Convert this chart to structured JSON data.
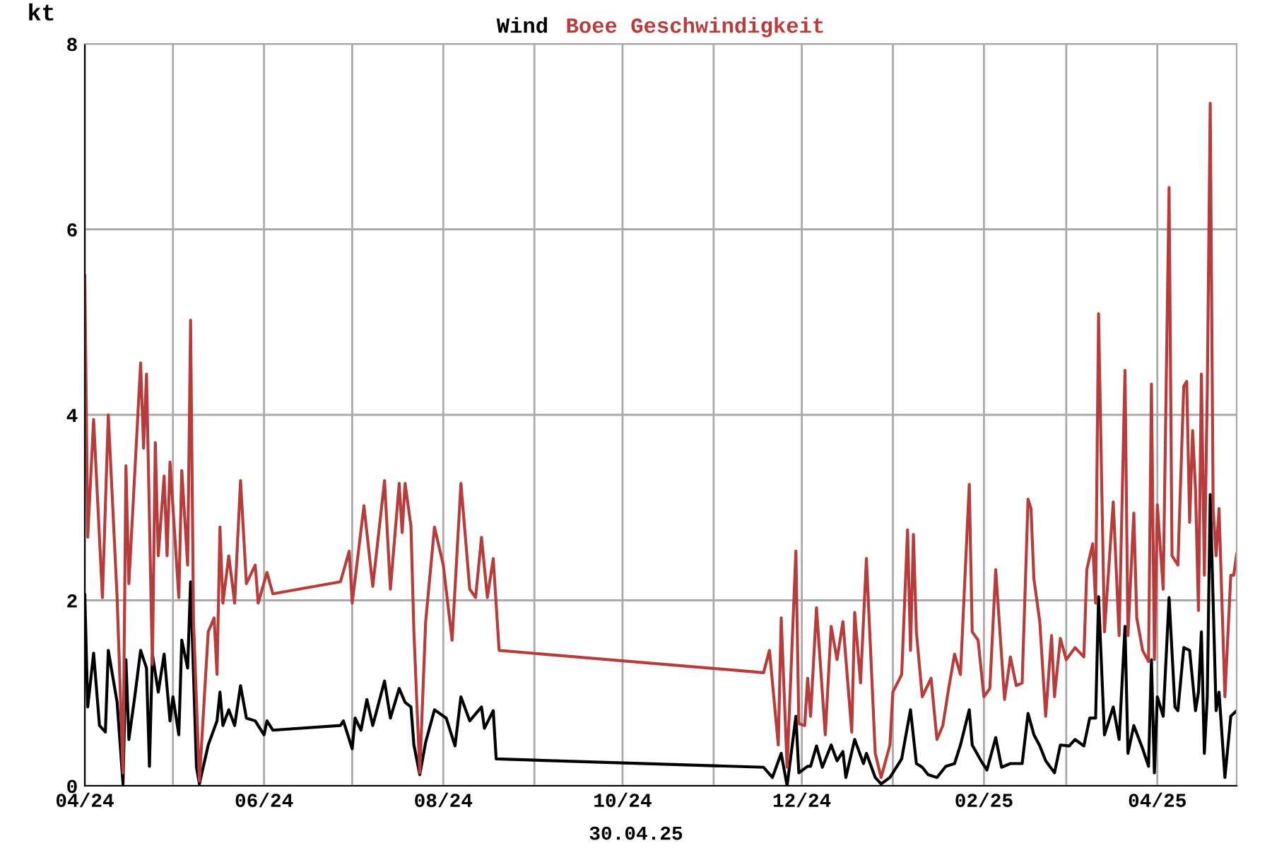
{
  "chart_data": {
    "type": "line",
    "ylabel": "kt",
    "legend": "top",
    "grid": true,
    "marker": "none",
    "line_style": "solid",
    "xlim": [
      "2024-04-01",
      "2025-04-28"
    ],
    "xticks": [
      {
        "value": "2024-04-01",
        "label": "04/24"
      },
      {
        "value": "2024-05-01",
        "label": null
      },
      {
        "value": "2024-06-01",
        "label": "06/24"
      },
      {
        "value": "2024-07-01",
        "label": null
      },
      {
        "value": "2024-08-01",
        "label": "08/24"
      },
      {
        "value": "2024-09-01",
        "label": null
      },
      {
        "value": "2024-10-01",
        "label": "10/24"
      },
      {
        "value": "2024-11-01",
        "label": null
      },
      {
        "value": "2024-12-01",
        "label": "12/24"
      },
      {
        "value": "2025-01-01",
        "label": null
      },
      {
        "value": "2025-02-01",
        "label": "02/25"
      },
      {
        "value": "2025-03-01",
        "label": null
      },
      {
        "value": "2025-04-01",
        "label": "04/25"
      }
    ],
    "ylim": [
      0,
      8
    ],
    "yticks": [
      0,
      2,
      4,
      6,
      8
    ],
    "annotations": [
      "30.04.25"
    ],
    "series": [
      {
        "name": "Wind",
        "color": "#000000",
        "x": [
          "2024-04-01",
          "2024-04-02",
          "2024-04-04",
          "2024-04-06",
          "2024-04-08",
          "2024-04-09",
          "2024-04-12",
          "2024-04-14",
          "2024-04-15",
          "2024-04-16",
          "2024-04-18",
          "2024-04-20",
          "2024-04-22",
          "2024-04-23",
          "2024-04-24",
          "2024-04-26",
          "2024-04-28",
          "2024-04-30",
          "2024-05-01",
          "2024-05-03",
          "2024-05-04",
          "2024-05-06",
          "2024-05-07",
          "2024-05-09",
          "2024-05-10",
          "2024-05-13",
          "2024-05-16",
          "2024-05-17",
          "2024-05-18",
          "2024-05-20",
          "2024-05-22",
          "2024-05-24",
          "2024-05-26",
          "2024-05-29",
          "2024-06-01",
          "2024-06-02",
          "2024-06-04",
          "2024-06-27",
          "2024-06-28",
          "2024-07-01",
          "2024-07-02",
          "2024-07-04",
          "2024-07-06",
          "2024-07-08",
          "2024-07-12",
          "2024-07-14",
          "2024-07-17",
          "2024-07-19",
          "2024-07-21",
          "2024-07-22",
          "2024-07-24",
          "2024-07-26",
          "2024-07-29",
          "2024-08-02",
          "2024-08-05",
          "2024-08-07",
          "2024-08-10",
          "2024-08-14",
          "2024-08-15",
          "2024-08-18",
          "2024-08-19",
          "2024-11-18",
          "2024-11-21",
          "2024-11-24",
          "2024-11-26",
          "2024-11-29",
          "2024-11-30",
          "2024-12-03",
          "2024-12-04",
          "2024-12-06",
          "2024-12-08",
          "2024-12-11",
          "2024-12-13",
          "2024-12-15",
          "2024-12-16",
          "2024-12-19",
          "2024-12-22",
          "2024-12-23",
          "2024-12-26",
          "2024-12-28",
          "2024-12-31",
          "2025-01-04",
          "2025-01-05",
          "2025-01-07",
          "2025-01-09",
          "2025-01-11",
          "2025-01-13",
          "2025-01-16",
          "2025-01-19",
          "2025-01-22",
          "2025-01-24",
          "2025-01-27",
          "2025-01-28",
          "2025-01-31",
          "2025-02-02",
          "2025-02-05",
          "2025-02-07",
          "2025-02-10",
          "2025-02-14",
          "2025-02-16",
          "2025-02-18",
          "2025-02-20",
          "2025-02-22",
          "2025-02-25",
          "2025-02-27",
          "2025-03-02",
          "2025-03-04",
          "2025-03-07",
          "2025-03-09",
          "2025-03-11",
          "2025-03-12",
          "2025-03-14",
          "2025-03-17",
          "2025-03-19",
          "2025-03-21",
          "2025-03-22",
          "2025-03-24",
          "2025-03-27",
          "2025-03-29",
          "2025-03-30",
          "2025-03-31",
          "2025-04-01",
          "2025-04-03",
          "2025-04-05",
          "2025-04-07",
          "2025-04-08",
          "2025-04-10",
          "2025-04-12",
          "2025-04-14",
          "2025-04-15",
          "2025-04-16",
          "2025-04-17",
          "2025-04-18",
          "2025-04-19",
          "2025-04-21",
          "2025-04-22",
          "2025-04-24",
          "2025-04-26",
          "2025-04-28"
        ],
        "values": [
          2.06,
          0.85,
          1.43,
          0.65,
          0.58,
          1.46,
          0.9,
          0.02,
          1.36,
          0.5,
          0.96,
          1.46,
          1.27,
          0.21,
          1.42,
          1.01,
          1.42,
          0.7,
          0.96,
          0.55,
          1.57,
          1.27,
          2.2,
          0.2,
          0.02,
          0.44,
          0.7,
          1.01,
          0.65,
          0.82,
          0.65,
          1.08,
          0.73,
          0.7,
          0.55,
          0.7,
          0.6,
          0.65,
          0.7,
          0.4,
          0.73,
          0.6,
          0.93,
          0.65,
          1.13,
          0.73,
          1.05,
          0.9,
          0.85,
          0.44,
          0.12,
          0.47,
          0.82,
          0.73,
          0.43,
          0.96,
          0.7,
          0.85,
          0.62,
          0.81,
          0.29,
          0.2,
          0.09,
          0.35,
          0.0,
          0.75,
          0.14,
          0.21,
          0.21,
          0.43,
          0.2,
          0.44,
          0.27,
          0.37,
          0.09,
          0.5,
          0.24,
          0.35,
          0.09,
          0.02,
          0.09,
          0.29,
          0.47,
          0.82,
          0.24,
          0.2,
          0.12,
          0.09,
          0.21,
          0.24,
          0.44,
          0.82,
          0.44,
          0.27,
          0.17,
          0.52,
          0.2,
          0.24,
          0.24,
          0.78,
          0.55,
          0.43,
          0.27,
          0.14,
          0.44,
          0.43,
          0.5,
          0.43,
          0.73,
          0.73,
          2.04,
          0.55,
          0.85,
          0.5,
          1.72,
          0.35,
          0.65,
          0.4,
          0.21,
          1.36,
          0.14,
          0.96,
          0.75,
          2.03,
          0.85,
          0.81,
          1.49,
          1.46,
          0.81,
          1.01,
          1.66,
          0.35,
          0.96,
          3.14,
          0.81,
          1.01,
          0.09,
          0.75,
          0.81
        ]
      },
      {
        "name": "Boee Geschwindigkeit",
        "color": "#b83c3c",
        "x": [
          "2024-04-01",
          "2024-04-02",
          "2024-04-04",
          "2024-04-07",
          "2024-04-09",
          "2024-04-12",
          "2024-04-14",
          "2024-04-15",
          "2024-04-16",
          "2024-04-20",
          "2024-04-21",
          "2024-04-22",
          "2024-04-24",
          "2024-04-25",
          "2024-04-26",
          "2024-04-28",
          "2024-04-29",
          "2024-04-30",
          "2024-05-03",
          "2024-05-04",
          "2024-05-06",
          "2024-05-07",
          "2024-05-08",
          "2024-05-10",
          "2024-05-13",
          "2024-05-15",
          "2024-05-16",
          "2024-05-17",
          "2024-05-18",
          "2024-05-20",
          "2024-05-22",
          "2024-05-23",
          "2024-05-24",
          "2024-05-26",
          "2024-05-29",
          "2024-05-30",
          "2024-06-02",
          "2024-06-04",
          "2024-06-27",
          "2024-06-30",
          "2024-07-01",
          "2024-07-05",
          "2024-07-08",
          "2024-07-12",
          "2024-07-14",
          "2024-07-17",
          "2024-07-18",
          "2024-07-19",
          "2024-07-21",
          "2024-07-22",
          "2024-07-24",
          "2024-07-26",
          "2024-07-29",
          "2024-08-01",
          "2024-08-04",
          "2024-08-07",
          "2024-08-10",
          "2024-08-12",
          "2024-08-14",
          "2024-08-16",
          "2024-08-18",
          "2024-08-20",
          "2024-11-18",
          "2024-11-20",
          "2024-11-23",
          "2024-11-24",
          "2024-11-26",
          "2024-11-29",
          "2024-11-30",
          "2024-12-02",
          "2024-12-03",
          "2024-12-04",
          "2024-12-06",
          "2024-12-09",
          "2024-12-11",
          "2024-12-13",
          "2024-12-15",
          "2024-12-18",
          "2024-12-19",
          "2024-12-21",
          "2024-12-23",
          "2024-12-26",
          "2024-12-28",
          "2024-12-31",
          "2025-01-01",
          "2025-01-04",
          "2025-01-06",
          "2025-01-07",
          "2025-01-08",
          "2025-01-09",
          "2025-01-11",
          "2025-01-14",
          "2025-01-16",
          "2025-01-18",
          "2025-01-20",
          "2025-01-22",
          "2025-01-24",
          "2025-01-27",
          "2025-01-28",
          "2025-01-30",
          "2025-02-01",
          "2025-02-03",
          "2025-02-05",
          "2025-02-08",
          "2025-02-10",
          "2025-02-12",
          "2025-02-14",
          "2025-02-16",
          "2025-02-17",
          "2025-02-18",
          "2025-02-20",
          "2025-02-22",
          "2025-02-24",
          "2025-02-25",
          "2025-02-27",
          "2025-03-01",
          "2025-03-04",
          "2025-03-07",
          "2025-03-08",
          "2025-03-10",
          "2025-03-11",
          "2025-03-12",
          "2025-03-14",
          "2025-03-17",
          "2025-03-19",
          "2025-03-21",
          "2025-03-22",
          "2025-03-24",
          "2025-03-25",
          "2025-03-27",
          "2025-03-29",
          "2025-03-30",
          "2025-03-31",
          "2025-04-01",
          "2025-04-03",
          "2025-04-05",
          "2025-04-06",
          "2025-04-08",
          "2025-04-10",
          "2025-04-11",
          "2025-04-12",
          "2025-04-13",
          "2025-04-14",
          "2025-04-15",
          "2025-04-16",
          "2025-04-17",
          "2025-04-18",
          "2025-04-19",
          "2025-04-20",
          "2025-04-21",
          "2025-04-22",
          "2025-04-24",
          "2025-04-26",
          "2025-04-27",
          "2025-04-28"
        ],
        "values": [
          5.5,
          2.68,
          3.95,
          2.03,
          4.0,
          2.03,
          0.14,
          3.45,
          2.18,
          4.56,
          3.64,
          4.44,
          1.31,
          3.7,
          2.48,
          3.34,
          2.48,
          3.49,
          2.03,
          3.4,
          2.38,
          5.02,
          1.77,
          0.05,
          1.66,
          1.81,
          1.2,
          2.79,
          1.97,
          2.48,
          1.97,
          2.64,
          3.29,
          2.18,
          2.38,
          1.97,
          2.3,
          2.07,
          2.2,
          2.53,
          1.97,
          3.02,
          2.15,
          3.29,
          2.12,
          3.26,
          2.73,
          3.26,
          2.8,
          1.66,
          0.14,
          1.77,
          2.79,
          2.38,
          1.57,
          3.26,
          2.12,
          2.03,
          2.68,
          2.03,
          2.45,
          1.46,
          1.22,
          1.46,
          0.44,
          1.81,
          0.2,
          2.53,
          0.67,
          0.65,
          1.16,
          0.75,
          1.92,
          0.55,
          1.72,
          1.36,
          1.77,
          0.58,
          1.87,
          1.11,
          2.45,
          0.35,
          0.09,
          0.44,
          1.01,
          1.2,
          2.76,
          1.46,
          2.71,
          1.66,
          0.96,
          1.16,
          0.5,
          0.65,
          1.05,
          1.42,
          1.2,
          3.25,
          1.66,
          1.57,
          0.96,
          1.05,
          2.33,
          0.93,
          1.39,
          1.08,
          1.11,
          3.09,
          2.99,
          2.23,
          1.77,
          0.75,
          1.62,
          0.96,
          1.59,
          1.36,
          1.49,
          1.39,
          2.33,
          2.61,
          1.97,
          5.09,
          1.66,
          3.06,
          1.62,
          4.48,
          1.62,
          2.94,
          1.81,
          1.46,
          1.34,
          4.33,
          1.36,
          3.03,
          2.12,
          6.45,
          2.48,
          2.38,
          4.31,
          4.36,
          2.84,
          3.83,
          3.19,
          1.89,
          4.44,
          2.27,
          4.25,
          7.36,
          2.99,
          2.48,
          2.99,
          0.96,
          2.27,
          2.27,
          2.5
        ]
      }
    ]
  }
}
